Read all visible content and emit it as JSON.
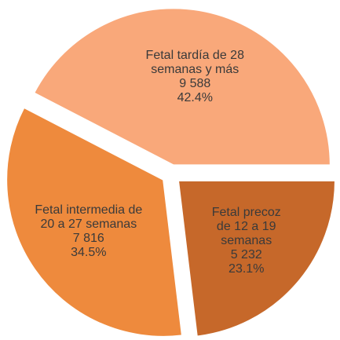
{
  "chart_data": {
    "type": "pie",
    "categories": [
      "Fetal precoz de 12 a 19 semanas",
      "Fetal intermedia de 20 a 27 semanas",
      "Fetal tardía de 28 semanas y más"
    ],
    "values": [
      23.1,
      34.5,
      42.4
    ],
    "value_labels": [
      "23.1%",
      "34.5%",
      "42.4%"
    ],
    "counts": [
      5232,
      7816,
      9588
    ],
    "count_labels": [
      "5 232",
      "7 816",
      "9 588"
    ],
    "colors": [
      "#c6682a",
      "#ee8a3d",
      "#f9a87a"
    ]
  }
}
